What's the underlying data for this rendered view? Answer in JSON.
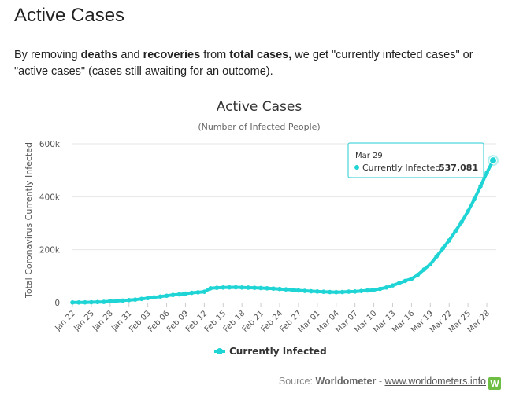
{
  "page": {
    "heading": "Active Cases",
    "intro": {
      "t1": "By removing ",
      "b1": "deaths",
      "t2": " and ",
      "b2": "recoveries",
      "t3": " from ",
      "b3": "total cases,",
      "t4": " we get \"currently infected cases\" or \"active cases\" (cases still awaiting for an outcome)."
    },
    "source": {
      "prefix": "Source:",
      "name": "Worldometer",
      "sep": "-",
      "link": "www.worldometers.info",
      "logo": "W"
    }
  },
  "colors": {
    "series": "#1fd4d4",
    "grid": "#e6e6e6",
    "axis_text": "#555555",
    "title": "#333333",
    "tooltip_border": "#4cd5d9"
  },
  "chart_data": {
    "type": "line",
    "title": "Active Cases",
    "subtitle": "(Number of Infected People)",
    "xlabel": "",
    "ylabel": "Total Coronavirus Currently Infected",
    "ylim": [
      0,
      600000
    ],
    "yticks": [
      0,
      200000,
      400000,
      600000
    ],
    "ytick_labels": [
      "0",
      "200k",
      "400k",
      "600k"
    ],
    "x_tick_labels": [
      "Jan 22",
      "Jan 25",
      "Jan 28",
      "Jan 31",
      "Feb 03",
      "Feb 06",
      "Feb 09",
      "Feb 12",
      "Feb 15",
      "Feb 18",
      "Feb 21",
      "Feb 24",
      "Feb 27",
      "Mar 01",
      "Mar 04",
      "Mar 07",
      "Mar 10",
      "Mar 13",
      "Mar 16",
      "Mar 19",
      "Mar 22",
      "Mar 25",
      "Mar 28"
    ],
    "x_tick_every": 3,
    "grid": true,
    "legend": "bottom-center",
    "series": [
      {
        "name": "Currently Infected",
        "x": [
          "Jan 22",
          "Jan 23",
          "Jan 24",
          "Jan 25",
          "Jan 26",
          "Jan 27",
          "Jan 28",
          "Jan 29",
          "Jan 30",
          "Jan 31",
          "Feb 01",
          "Feb 02",
          "Feb 03",
          "Feb 04",
          "Feb 05",
          "Feb 06",
          "Feb 07",
          "Feb 08",
          "Feb 09",
          "Feb 10",
          "Feb 11",
          "Feb 12",
          "Feb 13",
          "Feb 14",
          "Feb 15",
          "Feb 16",
          "Feb 17",
          "Feb 18",
          "Feb 19",
          "Feb 20",
          "Feb 21",
          "Feb 22",
          "Feb 23",
          "Feb 24",
          "Feb 25",
          "Feb 26",
          "Feb 27",
          "Feb 28",
          "Feb 29",
          "Mar 01",
          "Mar 02",
          "Mar 03",
          "Mar 04",
          "Mar 05",
          "Mar 06",
          "Mar 07",
          "Mar 08",
          "Mar 09",
          "Mar 10",
          "Mar 11",
          "Mar 12",
          "Mar 13",
          "Mar 14",
          "Mar 15",
          "Mar 16",
          "Mar 17",
          "Mar 18",
          "Mar 19",
          "Mar 20",
          "Mar 21",
          "Mar 22",
          "Mar 23",
          "Mar 24",
          "Mar 25",
          "Mar 26",
          "Mar 27",
          "Mar 28",
          "Mar 29"
        ],
        "values": [
          500,
          600,
          900,
          1400,
          2000,
          2700,
          5500,
          5800,
          7800,
          9500,
          11400,
          14000,
          17000,
          20000,
          23000,
          26000,
          29000,
          31000,
          34000,
          37000,
          39000,
          41000,
          54000,
          56000,
          57000,
          57500,
          57800,
          57000,
          56500,
          56000,
          55000,
          54000,
          53000,
          51500,
          50000,
          48000,
          46000,
          44500,
          43000,
          42000,
          41000,
          40000,
          39500,
          40000,
          41500,
          42000,
          44000,
          46000,
          48000,
          52000,
          57000,
          65000,
          73000,
          82000,
          90000,
          105000,
          125000,
          145000,
          175000,
          205000,
          235000,
          270000,
          305000,
          345000,
          390000,
          440000,
          490000,
          537081
        ]
      }
    ],
    "tooltip": {
      "date": "Mar 29",
      "series_label": "Currently Infected:",
      "value": "537,081"
    }
  }
}
